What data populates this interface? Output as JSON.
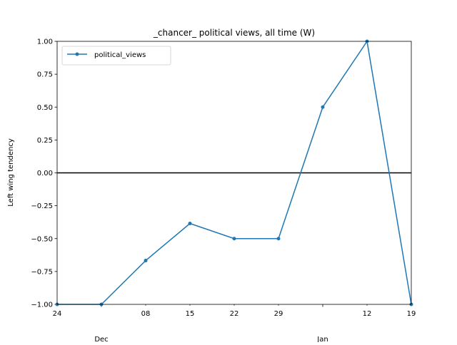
{
  "chart_data": {
    "type": "line",
    "title": "_chancer_ political views, all time (W)",
    "xlabel": "",
    "ylabel": "Left wing tendency",
    "ylim": [
      -1.0,
      1.0
    ],
    "yticks": [
      "−1.00",
      "−0.75",
      "−0.50",
      "−0.25",
      "0.00",
      "0.25",
      "0.50",
      "0.75",
      "1.00"
    ],
    "ytick_values": [
      -1.0,
      -0.75,
      -0.5,
      -0.25,
      0.0,
      0.25,
      0.5,
      0.75,
      1.0
    ],
    "xlim": [
      "2018-11-24",
      "2019-01-19"
    ],
    "x_major_ticks": [
      {
        "date": "2018-12-01",
        "label": "Dec"
      },
      {
        "date": "2019-01-05",
        "label": "Jan"
      }
    ],
    "x_minor_ticks": [
      {
        "date": "2018-11-24",
        "label": "24"
      },
      {
        "date": "2018-12-08",
        "label": "08"
      },
      {
        "date": "2018-12-15",
        "label": "15"
      },
      {
        "date": "2018-12-22",
        "label": "22"
      },
      {
        "date": "2018-12-29",
        "label": "29"
      },
      {
        "date": "2019-01-12",
        "label": "12"
      },
      {
        "date": "2019-01-19",
        "label": "19"
      }
    ],
    "series": [
      {
        "name": "political_views",
        "color": "#1f77b4",
        "x": [
          "2018-11-24",
          "2018-12-01",
          "2018-12-08",
          "2018-12-15",
          "2018-12-22",
          "2018-12-29",
          "2019-01-05",
          "2019-01-12",
          "2019-01-19"
        ],
        "y": [
          -1.0,
          -1.0,
          -0.667,
          -0.385,
          -0.5,
          -0.5,
          0.5,
          1.0,
          -1.0
        ]
      }
    ],
    "reference_line": {
      "y": 0.0,
      "color": "#000000"
    },
    "legend": {
      "position": "upper left"
    },
    "grid": false
  }
}
